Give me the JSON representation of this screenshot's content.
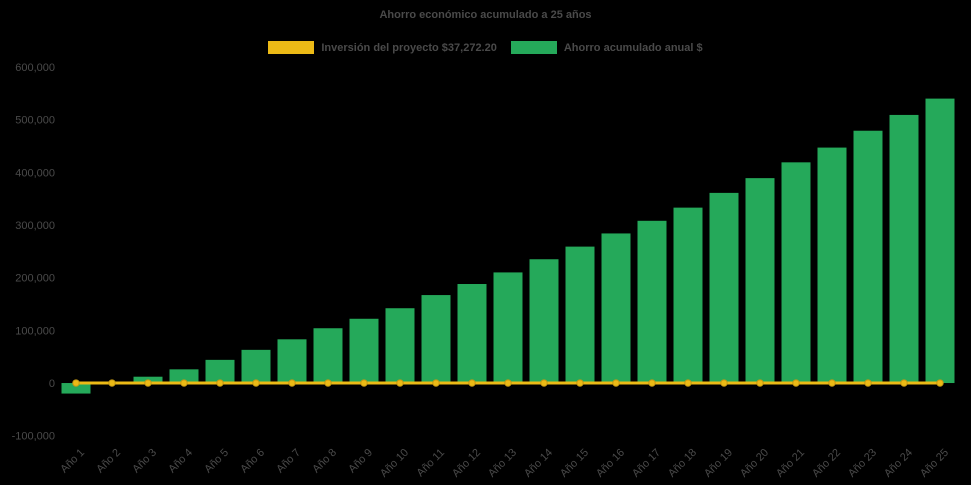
{
  "title": "Ahorro económico acumulado a 25 años",
  "legend": {
    "investment_label": "Inversión del proyecto $37,272.20",
    "savings_label": "Ahorro acumulado anual $"
  },
  "colors": {
    "background": "#000000",
    "text": "#4a4a4a",
    "bar": "#25a95a",
    "line": "#ecba16",
    "line_marker_stroke": "#c79a12"
  },
  "chart_data": {
    "type": "bar",
    "title": "Ahorro económico acumulado a 25 años",
    "categories": [
      "Año 1",
      "Año 2",
      "Año 3",
      "Año 4",
      "Año 5",
      "Año 6",
      "Año 7",
      "Año 8",
      "Año 9",
      "Año 10",
      "Año 11",
      "Año 12",
      "Año 13",
      "Año 14",
      "Año 15",
      "Año 16",
      "Año 17",
      "Año 18",
      "Año 19",
      "Año 20",
      "Año 21",
      "Año 22",
      "Año 23",
      "Año 24",
      "Año 25"
    ],
    "series": [
      {
        "name": "Ahorro acumulado anual $",
        "type": "bar",
        "color": "#25a95a",
        "values": [
          -20000,
          2000,
          12000,
          26000,
          44000,
          63000,
          83000,
          104000,
          122000,
          142000,
          167000,
          188000,
          210000,
          235000,
          259000,
          284000,
          308000,
          333000,
          361000,
          389000,
          419000,
          447000,
          479000,
          509000,
          540000
        ]
      },
      {
        "name": "Inversión del proyecto $37,272.20",
        "type": "line",
        "color": "#ecba16",
        "values": [
          0,
          0,
          0,
          0,
          0,
          0,
          0,
          0,
          0,
          0,
          0,
          0,
          0,
          0,
          0,
          0,
          0,
          0,
          0,
          0,
          0,
          0,
          0,
          0,
          0
        ]
      }
    ],
    "ylim": [
      -100000,
      600000
    ],
    "y_ticks": [
      600000,
      500000,
      400000,
      300000,
      200000,
      100000,
      0,
      -100000
    ],
    "y_tick_labels": [
      "600,000",
      "500,000",
      "400,000",
      "300,000",
      "200,000",
      "100,000",
      "0",
      "-100,000"
    ],
    "xlabel": "",
    "ylabel": "",
    "grid": false,
    "legend_position": "top-center",
    "x_label_rotation": -45
  }
}
